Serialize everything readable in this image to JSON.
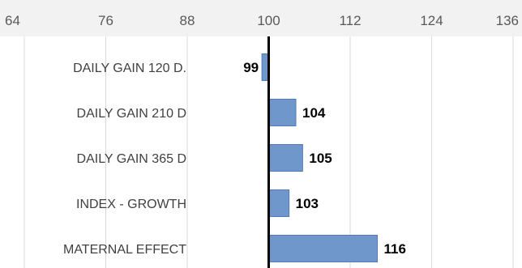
{
  "chart_data": {
    "type": "bar",
    "orientation": "horizontal",
    "categories": [
      "DAILY GAIN 120 D.",
      "DAILY GAIN 210 D",
      "DAILY GAIN 365 D",
      "INDEX - GROWTH",
      "MATERNAL EFFECT"
    ],
    "values": [
      99,
      104,
      105,
      103,
      116
    ],
    "baseline": 100,
    "xlim": [
      64,
      136
    ],
    "ticks": [
      64,
      76,
      88,
      100,
      112,
      124,
      136
    ],
    "axis_position": "top",
    "grid": true,
    "title": "",
    "xlabel": "",
    "ylabel": ""
  },
  "colors": {
    "bar_fill": "#6f97cc",
    "bar_stroke": "#4f7cb8",
    "background": "#f2f2f2",
    "grid": "#d9d9d9",
    "baseline": "#000000"
  }
}
